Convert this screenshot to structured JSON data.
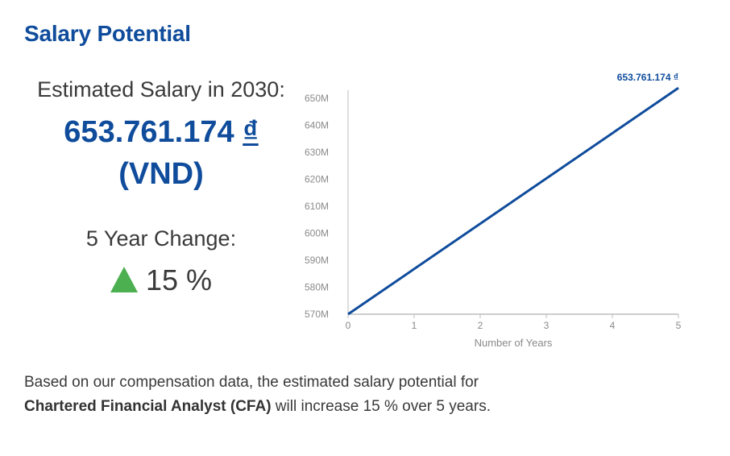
{
  "section_title": "Salary Potential",
  "estimate": {
    "label": "Estimated Salary in 2030:",
    "value": "653.761.174",
    "currency_symbol": "₫",
    "currency_code": "(VND)"
  },
  "change": {
    "label": "5 Year Change:",
    "value": "15 %",
    "direction": "up"
  },
  "description": {
    "prefix": "Based on our compensation data, the estimated salary potential for ",
    "role": "Chartered Financial Analyst (CFA)",
    "suffix": " will increase 15 % over 5 years."
  },
  "colors": {
    "accent": "#0f4c9c",
    "up_arrow": "#4caf50",
    "axis": "#bdbdbd",
    "tick_text": "#8a8a8a"
  },
  "chart_data": {
    "type": "line",
    "title": "",
    "xlabel": "Number of Years",
    "ylabel": "",
    "x": [
      0,
      1,
      2,
      3,
      4,
      5
    ],
    "xlim": [
      0,
      5
    ],
    "ylim": [
      570,
      655
    ],
    "y_ticks": [
      570,
      580,
      590,
      600,
      610,
      620,
      630,
      640,
      650
    ],
    "y_tick_labels": [
      "570M",
      "580M",
      "590M",
      "600M",
      "610M",
      "620M",
      "630M",
      "640M",
      "650M"
    ],
    "x_tick_labels": [
      "0",
      "1",
      "2",
      "3",
      "4",
      "5"
    ],
    "series": [
      {
        "values": [
          570,
          653.761174
        ],
        "x": [
          0,
          5
        ],
        "color": "#0f4c9c"
      }
    ],
    "end_label": "653.761.174 ₫",
    "grid": false
  }
}
